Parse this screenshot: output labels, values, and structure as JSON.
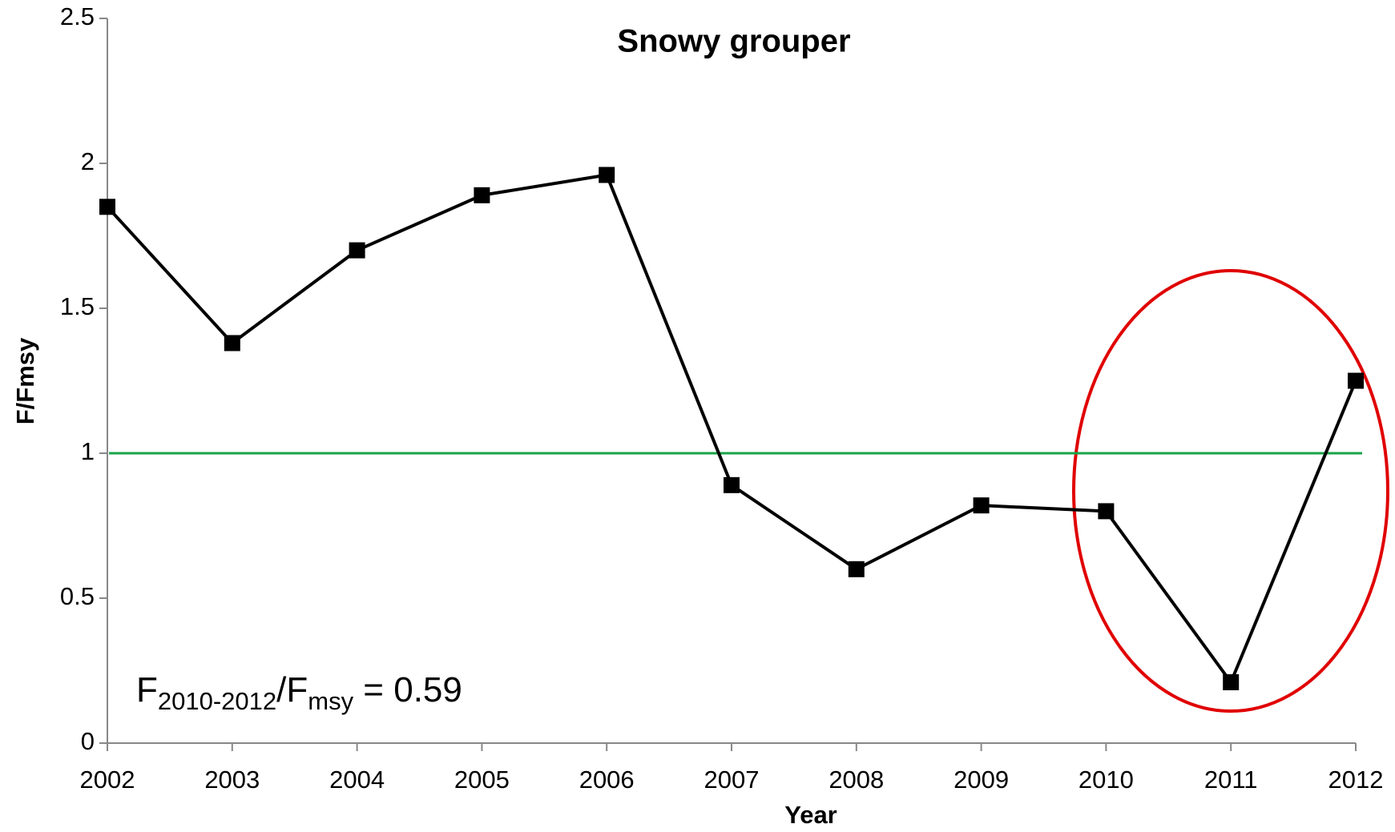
{
  "chart_data": {
    "type": "line",
    "title": "Snowy grouper",
    "x_label": "Year",
    "y_label": "F/Fmsy",
    "x": [
      2002,
      2003,
      2004,
      2005,
      2006,
      2007,
      2008,
      2009,
      2010,
      2011,
      2012
    ],
    "series": [
      {
        "name": "F/Fmsy",
        "color": "#000000",
        "values": [
          1.85,
          1.38,
          1.7,
          1.89,
          1.96,
          0.89,
          0.6,
          0.82,
          0.8,
          0.21,
          1.25
        ]
      }
    ],
    "xlim": [
      2002,
      2012
    ],
    "xticks": [
      2002,
      2003,
      2004,
      2005,
      2006,
      2007,
      2008,
      2009,
      2010,
      2011,
      2012
    ],
    "ylim": [
      0,
      2.5
    ],
    "yticks": [
      0,
      0.5,
      1,
      1.5,
      2,
      2.5
    ],
    "reference_line": {
      "value": 1,
      "color": "#1aa34a"
    },
    "annotation": [
      {
        "text": "F"
      },
      {
        "text": "2010-2012",
        "sub": true
      },
      {
        "text": "/F"
      },
      {
        "text": "msy",
        "sub": true
      },
      {
        "text": " = 0.59"
      }
    ]
  }
}
